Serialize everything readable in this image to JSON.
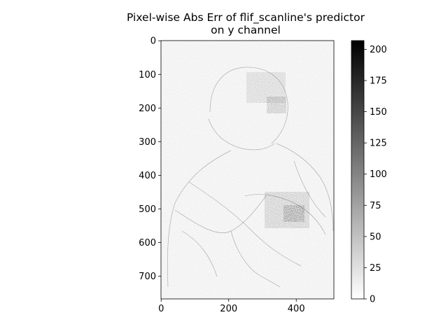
{
  "chart_data": {
    "type": "heatmap",
    "title_line1": "Pixel-wise Abs Err of flif_scanline's predictor",
    "title_line2": "on y channel",
    "xlabel": "",
    "ylabel": "",
    "image_width": 512,
    "image_height": 768,
    "x_ticks": [
      0,
      200,
      400
    ],
    "y_ticks": [
      0,
      100,
      200,
      300,
      400,
      500,
      600,
      700
    ],
    "colormap": "gray_r",
    "colorbar": {
      "min": 0,
      "max": 207,
      "ticks": [
        0,
        25,
        50,
        75,
        100,
        125,
        150,
        175,
        200
      ]
    }
  }
}
